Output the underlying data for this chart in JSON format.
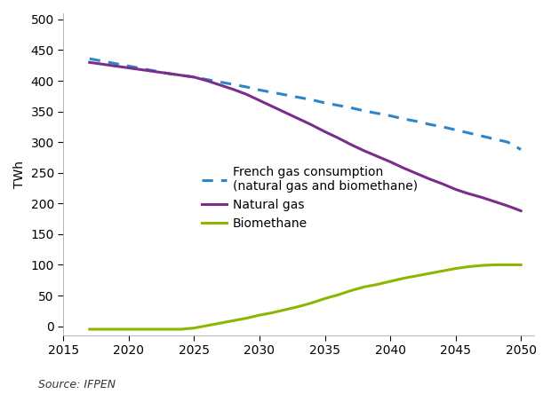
{
  "title": "",
  "source": "Source: IFPEN",
  "ylabel": "TWh",
  "ylim": [
    -15,
    510
  ],
  "xlim": [
    2015,
    2051
  ],
  "yticks": [
    0,
    50,
    100,
    150,
    200,
    250,
    300,
    350,
    400,
    450,
    500
  ],
  "xticks": [
    2015,
    2020,
    2025,
    2030,
    2035,
    2040,
    2045,
    2050
  ],
  "french_gas": {
    "x": [
      2017,
      2018,
      2019,
      2020,
      2021,
      2022,
      2023,
      2024,
      2025,
      2026,
      2027,
      2028,
      2029,
      2030,
      2031,
      2032,
      2033,
      2034,
      2035,
      2036,
      2037,
      2038,
      2039,
      2040,
      2041,
      2042,
      2043,
      2044,
      2045,
      2046,
      2047,
      2048,
      2049,
      2050
    ],
    "y": [
      436,
      432,
      428,
      424,
      420,
      416,
      412,
      409,
      406,
      402,
      398,
      394,
      390,
      385,
      381,
      377,
      373,
      369,
      364,
      360,
      356,
      351,
      347,
      343,
      338,
      334,
      329,
      325,
      320,
      315,
      310,
      305,
      300,
      288
    ],
    "color": "#2e86c9",
    "linewidth": 2.2,
    "label": "French gas consumption\n(natural gas and biomethane)"
  },
  "natural_gas": {
    "x": [
      2017,
      2018,
      2019,
      2020,
      2021,
      2022,
      2023,
      2024,
      2025,
      2026,
      2027,
      2028,
      2029,
      2030,
      2031,
      2032,
      2033,
      2034,
      2035,
      2036,
      2037,
      2038,
      2039,
      2040,
      2041,
      2042,
      2043,
      2044,
      2045,
      2046,
      2047,
      2048,
      2049,
      2050
    ],
    "y": [
      430,
      427,
      424,
      421,
      418,
      415,
      412,
      409,
      406,
      400,
      393,
      386,
      378,
      368,
      358,
      348,
      338,
      328,
      317,
      307,
      296,
      286,
      277,
      268,
      258,
      249,
      240,
      232,
      223,
      216,
      210,
      203,
      196,
      188
    ],
    "color": "#7B2D8B",
    "linewidth": 2.2,
    "label": "Natural gas"
  },
  "biomethane": {
    "x": [
      2017,
      2018,
      2019,
      2020,
      2021,
      2022,
      2023,
      2024,
      2025,
      2026,
      2027,
      2028,
      2029,
      2030,
      2031,
      2032,
      2033,
      2034,
      2035,
      2036,
      2037,
      2038,
      2039,
      2040,
      2041,
      2042,
      2043,
      2044,
      2045,
      2046,
      2047,
      2048,
      2049,
      2050
    ],
    "y": [
      -5,
      -5,
      -5,
      -5,
      -5,
      -5,
      -5,
      -5,
      -3,
      1,
      5,
      9,
      13,
      18,
      22,
      27,
      32,
      38,
      45,
      51,
      58,
      64,
      68,
      73,
      78,
      82,
      86,
      90,
      94,
      97,
      99,
      100,
      100,
      100
    ],
    "color": "#8DB600",
    "linewidth": 2.2,
    "label": "Biomethane"
  },
  "background_color": "#ffffff",
  "tick_fontsize": 10,
  "label_fontsize": 10,
  "source_fontsize": 9
}
